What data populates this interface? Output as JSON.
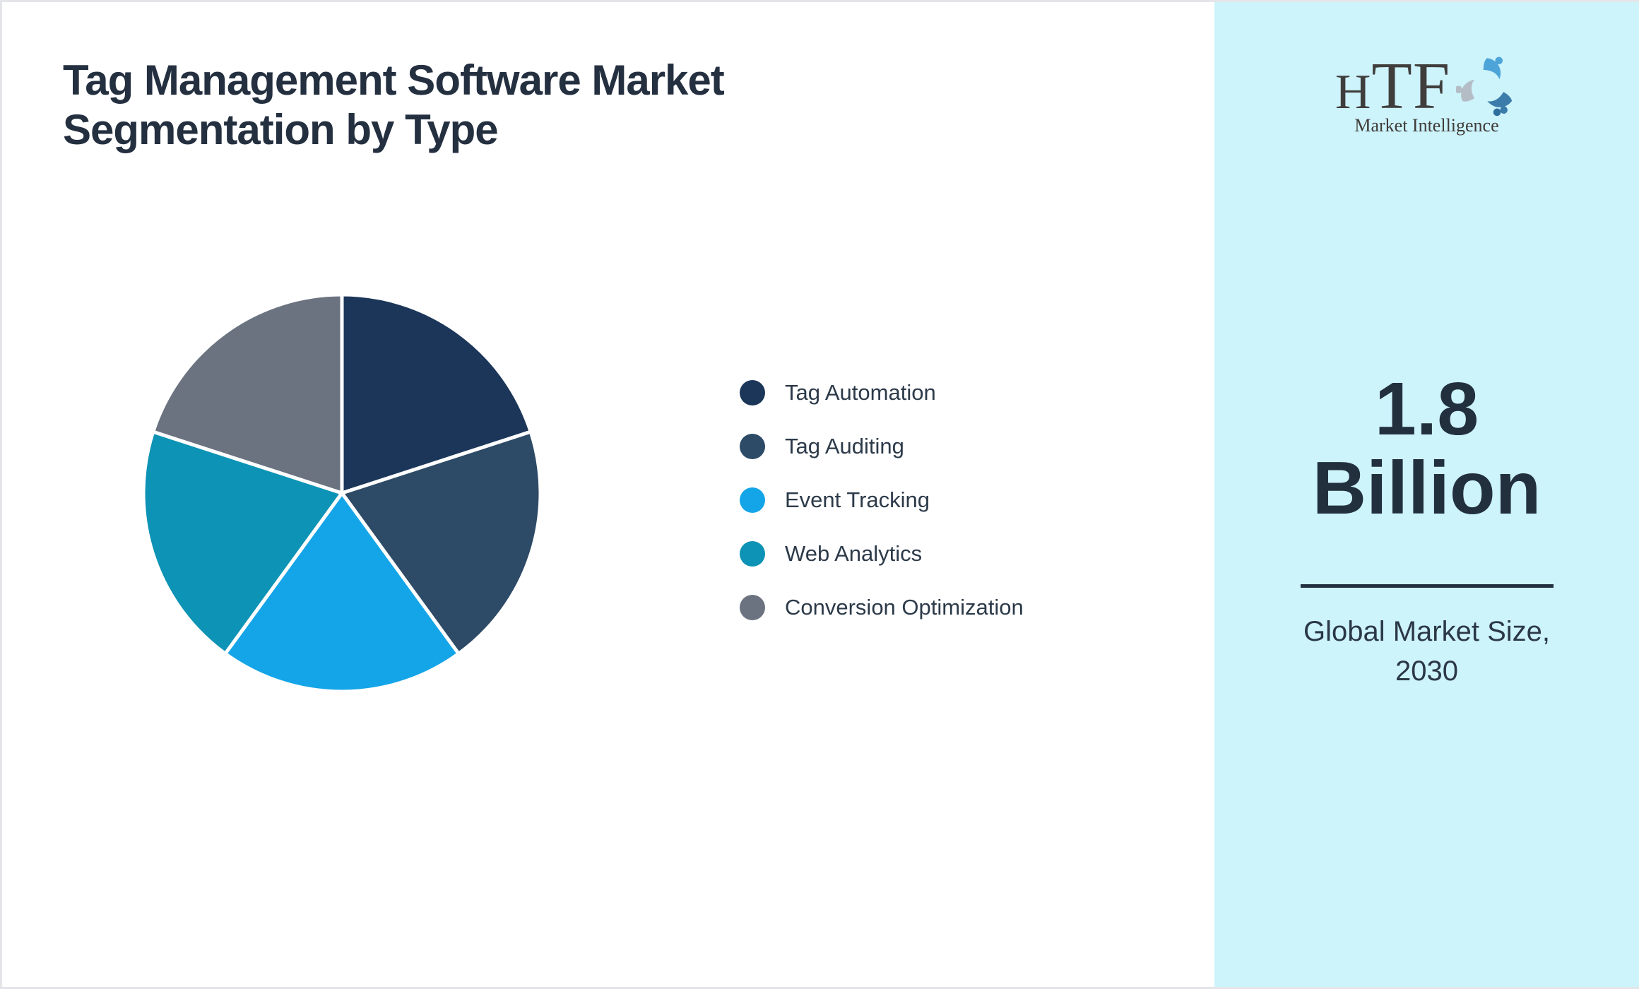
{
  "page": {
    "background": "#ffffff",
    "border_color": "#e3e5e9"
  },
  "title": {
    "text": "Tag Management Software Market Segmentation by Type",
    "color": "#243040"
  },
  "chart_data": {
    "type": "pie",
    "title": "Tag Management Software Market Segmentation by Type",
    "start_angle_deg": 0,
    "direction": "clockwise",
    "legend_position": "right",
    "data_labels_shown": false,
    "units": "percent share (unlabeled, equal slices)",
    "slices": [
      {
        "label": "Tag Automation",
        "value": 20,
        "color": "#1b3659"
      },
      {
        "label": "Tag Auditing",
        "value": 20,
        "color": "#2d4a66"
      },
      {
        "label": "Event Tracking",
        "value": 20,
        "color": "#14a5e8"
      },
      {
        "label": "Web Analytics",
        "value": 20,
        "color": "#0d93b5"
      },
      {
        "label": "Conversion Optimization",
        "value": 20,
        "color": "#6b7280"
      }
    ],
    "slice_border_color": "#ffffff"
  },
  "sidebar": {
    "background": "#cdf3fb",
    "logo": {
      "acronym_part1": "H",
      "acronym_part2": "TF",
      "subtitle": "Market Intelligence",
      "mark_colors": {
        "top_figure": "#4da4d8",
        "right_figure": "#3c7cab",
        "left_figure": "#b4bdc6",
        "accent_dot": "#2e6f9e"
      }
    },
    "metric": {
      "value": "1.8",
      "unit": "Billion",
      "caption_line1": "Global Market Size,",
      "caption_line2": "2030",
      "text_color": "#22303e",
      "divider_color": "#22303e"
    }
  }
}
